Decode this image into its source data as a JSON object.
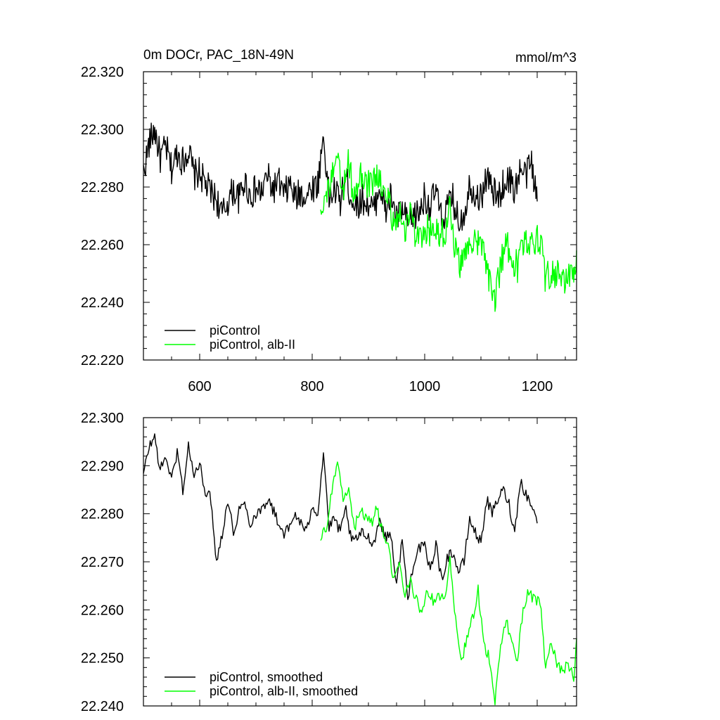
{
  "chart_data": [
    {
      "type": "line",
      "title": "0m DOCr, PAC_18N-49N",
      "units": "mmol/m^3",
      "xlabel": "",
      "ylabel": "",
      "xlim": [
        500,
        1270
      ],
      "ylim": [
        22.22,
        22.32
      ],
      "xticks": [
        600,
        800,
        1000,
        1200
      ],
      "xtick_labels": [
        "600",
        "800",
        "1000",
        "1200"
      ],
      "yticks": [
        22.22,
        22.24,
        22.26,
        22.28,
        22.3,
        22.32
      ],
      "ytick_labels": [
        "22.220",
        "22.240",
        "22.260",
        "22.280",
        "22.300",
        "22.320"
      ],
      "legend_position": "bottom-left",
      "series": [
        {
          "name": "piControl",
          "color": "#000000",
          "x": [
            500,
            510,
            520,
            530,
            540,
            550,
            560,
            570,
            580,
            590,
            600,
            610,
            620,
            630,
            640,
            650,
            660,
            670,
            680,
            690,
            700,
            710,
            720,
            730,
            740,
            750,
            760,
            770,
            780,
            790,
            800,
            810,
            820,
            830,
            840,
            850,
            860,
            870,
            880,
            890,
            900,
            910,
            920,
            930,
            940,
            950,
            960,
            970,
            980,
            990,
            1000,
            1010,
            1020,
            1030,
            1040,
            1050,
            1060,
            1070,
            1080,
            1090,
            1100,
            1110,
            1120,
            1130,
            1140,
            1150,
            1160,
            1170,
            1180,
            1190,
            1200
          ],
          "y": [
            22.285,
            22.295,
            22.3,
            22.29,
            22.294,
            22.286,
            22.292,
            22.289,
            22.293,
            22.284,
            22.285,
            22.281,
            22.278,
            22.276,
            22.27,
            22.275,
            22.279,
            22.276,
            22.282,
            22.277,
            22.279,
            22.278,
            22.284,
            22.279,
            22.282,
            22.277,
            22.281,
            22.276,
            22.278,
            22.277,
            22.28,
            22.281,
            22.298,
            22.276,
            22.279,
            22.275,
            22.283,
            22.276,
            22.274,
            22.276,
            22.274,
            22.272,
            22.281,
            22.271,
            22.277,
            22.269,
            22.272,
            22.267,
            22.27,
            22.271,
            22.277,
            22.273,
            22.279,
            22.268,
            22.273,
            22.276,
            22.268,
            22.271,
            22.281,
            22.278,
            22.276,
            22.284,
            22.279,
            22.276,
            22.281,
            22.283,
            22.279,
            22.286,
            22.284,
            22.289,
            22.275
          ]
        },
        {
          "name": "piControl, alb-II",
          "color": "#00ff00",
          "x": [
            815,
            825,
            835,
            845,
            855,
            865,
            875,
            885,
            895,
            905,
            915,
            925,
            935,
            945,
            955,
            965,
            975,
            985,
            995,
            1005,
            1015,
            1025,
            1035,
            1045,
            1055,
            1065,
            1075,
            1085,
            1095,
            1105,
            1115,
            1125,
            1135,
            1145,
            1155,
            1165,
            1175,
            1185,
            1195,
            1205,
            1215,
            1225,
            1235,
            1245,
            1255,
            1265,
            1270
          ],
          "y": [
            22.274,
            22.277,
            22.283,
            22.288,
            22.279,
            22.289,
            22.275,
            22.284,
            22.282,
            22.28,
            22.285,
            22.278,
            22.276,
            22.268,
            22.27,
            22.266,
            22.272,
            22.262,
            22.26,
            22.266,
            22.263,
            22.265,
            22.264,
            22.272,
            22.258,
            22.252,
            22.26,
            22.262,
            22.26,
            22.257,
            22.248,
            22.241,
            22.253,
            22.26,
            22.256,
            22.252,
            22.26,
            22.262,
            22.262,
            22.262,
            22.248,
            22.25,
            22.25,
            22.247,
            22.249,
            22.248,
            22.258
          ]
        }
      ]
    },
    {
      "type": "line",
      "title": "",
      "xlabel": "",
      "ylabel": "",
      "xlim": [
        500,
        1270
      ],
      "ylim": [
        22.24,
        22.3
      ],
      "xticks": [
        600,
        800,
        1000,
        1200
      ],
      "xtick_labels": [],
      "yticks": [
        22.24,
        22.25,
        22.26,
        22.27,
        22.28,
        22.29,
        22.3
      ],
      "ytick_labels": [
        "22.240",
        "22.250",
        "22.260",
        "22.270",
        "22.280",
        "22.290",
        "22.300"
      ],
      "legend_position": "bottom-left",
      "series": [
        {
          "name": "piControl, smoothed",
          "color": "#000000",
          "x": [
            500,
            510,
            520,
            530,
            540,
            550,
            560,
            570,
            580,
            590,
            600,
            610,
            620,
            630,
            640,
            650,
            660,
            670,
            680,
            690,
            700,
            710,
            720,
            730,
            740,
            750,
            760,
            770,
            780,
            790,
            800,
            810,
            820,
            830,
            840,
            850,
            860,
            870,
            880,
            890,
            900,
            910,
            920,
            930,
            940,
            950,
            960,
            970,
            980,
            990,
            1000,
            1010,
            1020,
            1030,
            1040,
            1050,
            1060,
            1070,
            1080,
            1090,
            1100,
            1110,
            1120,
            1130,
            1140,
            1150,
            1160,
            1170,
            1180,
            1190,
            1200
          ],
          "y": [
            22.288,
            22.294,
            22.296,
            22.289,
            22.292,
            22.287,
            22.293,
            22.285,
            22.294,
            22.288,
            22.29,
            22.285,
            22.283,
            22.27,
            22.276,
            22.283,
            22.276,
            22.281,
            22.282,
            22.278,
            22.28,
            22.281,
            22.283,
            22.281,
            22.278,
            22.276,
            22.277,
            22.28,
            22.278,
            22.276,
            22.282,
            22.28,
            22.293,
            22.277,
            22.279,
            22.276,
            22.281,
            22.274,
            22.275,
            22.276,
            22.275,
            22.274,
            22.279,
            22.275,
            22.276,
            22.265,
            22.275,
            22.262,
            22.27,
            22.273,
            22.273,
            22.268,
            22.274,
            22.266,
            22.271,
            22.272,
            22.268,
            22.27,
            22.279,
            22.276,
            22.274,
            22.283,
            22.28,
            22.283,
            22.285,
            22.282,
            22.276,
            22.287,
            22.284,
            22.282,
            22.278
          ]
        },
        {
          "name": "piControl, alb-II, smoothed",
          "color": "#00ff00",
          "x": [
            815,
            825,
            835,
            845,
            855,
            865,
            875,
            885,
            895,
            905,
            915,
            925,
            935,
            945,
            955,
            965,
            975,
            985,
            995,
            1005,
            1015,
            1025,
            1035,
            1045,
            1055,
            1065,
            1075,
            1085,
            1095,
            1105,
            1115,
            1125,
            1135,
            1145,
            1155,
            1165,
            1175,
            1185,
            1195,
            1205,
            1215,
            1225,
            1235,
            1245,
            1255,
            1265,
            1270
          ],
          "y": [
            22.275,
            22.277,
            22.285,
            22.29,
            22.283,
            22.286,
            22.277,
            22.281,
            22.279,
            22.278,
            22.281,
            22.276,
            22.273,
            22.266,
            22.27,
            22.263,
            22.266,
            22.262,
            22.259,
            22.264,
            22.262,
            22.263,
            22.262,
            22.27,
            22.258,
            22.249,
            22.254,
            22.258,
            22.264,
            22.253,
            22.25,
            22.241,
            22.252,
            22.258,
            22.253,
            22.25,
            22.26,
            22.264,
            22.262,
            22.262,
            22.248,
            22.253,
            22.249,
            22.247,
            22.249,
            22.246,
            22.254
          ]
        }
      ]
    }
  ]
}
